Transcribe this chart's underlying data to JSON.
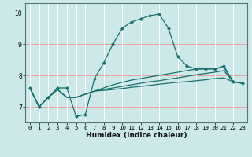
{
  "title": "",
  "xlabel": "Humidex (Indice chaleur)",
  "bg_color": "#cce8e8",
  "grid_color": "#ffffff",
  "hgrid_color": "#e8a0a0",
  "line_color": "#1a7070",
  "x_ticks": [
    0,
    1,
    2,
    3,
    4,
    5,
    6,
    7,
    8,
    9,
    10,
    11,
    12,
    13,
    14,
    15,
    16,
    17,
    18,
    19,
    20,
    21,
    22,
    23
  ],
  "ylim": [
    6.5,
    10.3
  ],
  "xlim": [
    -0.5,
    23.5
  ],
  "yticks": [
    7,
    8,
    9,
    10
  ],
  "series": [
    [
      7.6,
      7.0,
      7.3,
      7.6,
      7.6,
      6.7,
      6.75,
      7.9,
      8.4,
      9.0,
      9.5,
      9.7,
      9.8,
      9.9,
      9.95,
      9.5,
      8.6,
      8.3,
      8.2,
      8.2,
      8.2,
      8.3,
      7.8,
      7.75
    ],
    [
      7.6,
      7.0,
      7.3,
      7.55,
      7.3,
      7.3,
      7.4,
      7.5,
      7.6,
      7.7,
      7.78,
      7.85,
      7.9,
      7.95,
      8.0,
      8.05,
      8.1,
      8.15,
      8.2,
      8.22,
      8.22,
      8.25,
      7.8,
      7.75
    ],
    [
      7.6,
      7.0,
      7.3,
      7.55,
      7.3,
      7.3,
      7.4,
      7.5,
      7.55,
      7.6,
      7.65,
      7.7,
      7.75,
      7.8,
      7.83,
      7.88,
      7.92,
      7.97,
      8.02,
      8.06,
      8.1,
      8.15,
      7.8,
      7.75
    ],
    [
      7.6,
      7.0,
      7.3,
      7.55,
      7.3,
      7.3,
      7.4,
      7.5,
      7.52,
      7.55,
      7.58,
      7.62,
      7.65,
      7.68,
      7.72,
      7.75,
      7.78,
      7.8,
      7.83,
      7.86,
      7.9,
      7.92,
      7.8,
      7.75
    ]
  ]
}
